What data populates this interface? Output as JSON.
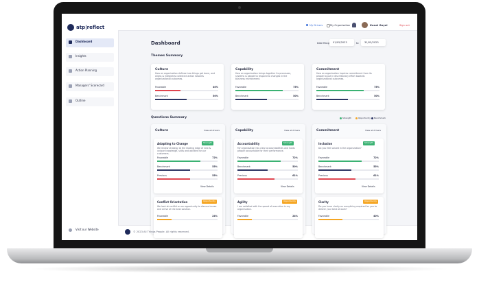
{
  "brand": "atp|reflect",
  "nav": [
    {
      "label": "Dashboard",
      "active": true
    },
    {
      "label": "Insights"
    },
    {
      "label": "Action Planning"
    },
    {
      "label": "Managers' Scorecard"
    },
    {
      "label": "Outline"
    }
  ],
  "visit": "Visit our Website",
  "top": {
    "drivers": "My Drivers",
    "org": "My Organisation",
    "user": "Kunal Goyal",
    "signout": "Sign out"
  },
  "page_title": "Dashboard",
  "date": {
    "label": "Date Range",
    "from": "01/05/2023",
    "sep": "to",
    "to": "31/05/2023"
  },
  "themes": {
    "title": "Themes Summary",
    "cards": [
      {
        "name": "Culture",
        "desc": "How an organisation defines how things get done, and aligns & integrates collective action towards organizational outcomes.",
        "rows": [
          {
            "name": "Favorable",
            "value": 40,
            "text": "40%",
            "color": "#e0454f"
          },
          {
            "name": "Benchmark",
            "value": 50,
            "text": "50%",
            "color": "#2c3563"
          }
        ]
      },
      {
        "name": "Capability",
        "desc": "How an organisation brings together its processes, systems & people to respond to changes in the business environment.",
        "rows": [
          {
            "name": "Favorable",
            "value": 75,
            "text": "75%",
            "color": "#3bb273"
          },
          {
            "name": "Benchmark",
            "value": 50,
            "text": "50%",
            "color": "#2c3563"
          }
        ]
      },
      {
        "name": "Commitment",
        "desc": "How an organisation inspires commitment from its people to put in discretionary effort towards organizational outcomes.",
        "rows": [
          {
            "name": "Favorable",
            "value": 75,
            "text": "75%",
            "color": "#3bb273"
          },
          {
            "name": "Benchmark",
            "value": 50,
            "text": "50%",
            "color": "#2c3563"
          }
        ]
      }
    ]
  },
  "legend": [
    {
      "label": "Strength",
      "color": "#3bb273"
    },
    {
      "label": "Opportunity",
      "color": "#f5a623"
    },
    {
      "label": "Benchmark",
      "color": "#2c3563"
    }
  ],
  "questions": {
    "title": "Questions Summary",
    "columns": [
      {
        "name": "Culture",
        "link": "View all drivers",
        "cards": [
          {
            "title": "Adapting to Change",
            "tag": "Strength",
            "tag_color": "#3bb273",
            "desc": "We review strategy at the leading edge of new & unique knowledge, skills and abilities for our customers.",
            "rows": [
              {
                "name": "Favorable",
                "value": 72,
                "text": "72%",
                "color": "#3bb273"
              },
              {
                "name": "Benchmark",
                "value": 55,
                "text": "55%",
                "color": "#2c3563"
              },
              {
                "name": "Previous",
                "value": 55,
                "text": "55%",
                "color": "#e0454f"
              }
            ],
            "details": "View Details"
          },
          {
            "title": "Conflict Orientation",
            "tag": "Opportunity",
            "tag_color": "#f5a623",
            "desc": "We look at conflict as an opportunity to discuss issues and arrive at the best solution.",
            "rows": [
              {
                "name": "Favorable",
                "value": 24,
                "text": "24%",
                "color": "#f5a623"
              }
            ]
          }
        ]
      },
      {
        "name": "Capability",
        "link": "View all drivers",
        "cards": [
          {
            "title": "Accountability",
            "tag": "Strength",
            "tag_color": "#3bb273",
            "desc": "My organisation has clear accountabilities and holds people accountable for their performance.",
            "rows": [
              {
                "name": "Favorable",
                "value": 72,
                "text": "72%",
                "color": "#3bb273"
              },
              {
                "name": "Benchmark",
                "value": 50,
                "text": "50%",
                "color": "#2c3563"
              },
              {
                "name": "Previous",
                "value": 61,
                "text": "61%",
                "color": "#e0454f"
              }
            ],
            "details": "View Details"
          },
          {
            "title": "Agility",
            "tag": "Opportunity",
            "tag_color": "#f5a623",
            "desc": "I am satisfied with the speed of execution in my organisation.",
            "rows": [
              {
                "name": "Favorable",
                "value": 24,
                "text": "24%",
                "color": "#f5a623"
              }
            ]
          }
        ]
      },
      {
        "name": "Commitment",
        "link": "View all drivers",
        "cards": [
          {
            "title": "Inclusion",
            "tag": "Strength",
            "tag_color": "#3bb273",
            "desc": "Do you feel valued in the organization?",
            "rows": [
              {
                "name": "Favorable",
                "value": 72,
                "text": "72%",
                "color": "#3bb273"
              },
              {
                "name": "Benchmark",
                "value": 55,
                "text": "55%",
                "color": "#2c3563"
              },
              {
                "name": "Previous",
                "value": 61,
                "text": "61%",
                "color": "#e0454f"
              }
            ],
            "details": "View Details"
          },
          {
            "title": "Clarity",
            "tag": "Opportunity",
            "tag_color": "#f5a623",
            "desc": "Do you have clarity on everything required for you to deliver your best at work?",
            "rows": [
              {
                "name": "Favorable",
                "value": 40,
                "text": "40%",
                "color": "#f5a623"
              }
            ]
          }
        ]
      }
    ]
  },
  "footer": "© 2023 All Things People. All rights reserved."
}
